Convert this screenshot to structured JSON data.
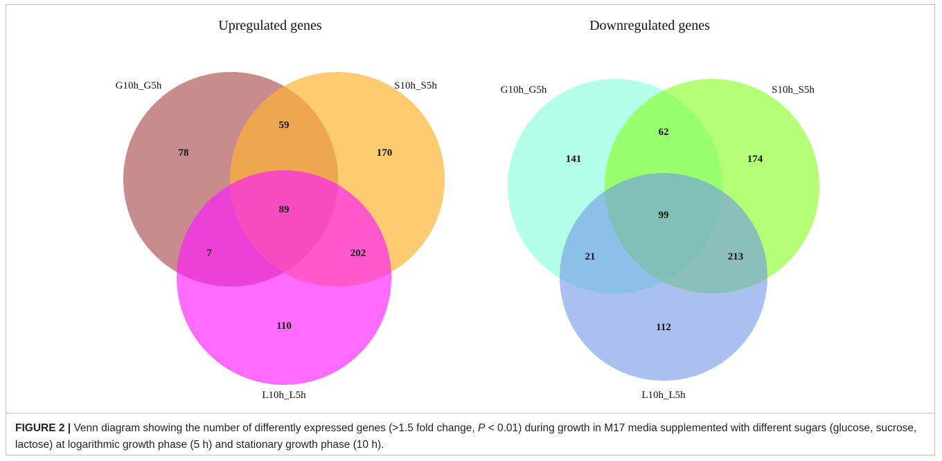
{
  "panels": [
    {
      "title": "Upregulated genes",
      "sets": [
        "G10h_G5h",
        "S10h_S5h",
        "L10h_L5h"
      ],
      "counts": [
        78,
        59,
        170,
        7,
        89,
        202,
        110
      ]
    },
    {
      "title": "Downregulated genes",
      "sets": [
        "G10h_G5h",
        "S10h_S5h",
        "L10h_L5h"
      ],
      "counts": [
        141,
        62,
        174,
        21,
        99,
        213,
        112
      ]
    }
  ],
  "caption": {
    "label": "FIGURE 2 |",
    "text": [
      "Venn diagram showing the number of differently expressed genes (>1.5 fold change, ",
      "P",
      " < 0.01) during growth in M17 media supplemented with different sugars (glucose, sucrose, lactose) at logarithmic growth phase (5 h) and stationary growth phase (10 h)."
    ]
  }
}
